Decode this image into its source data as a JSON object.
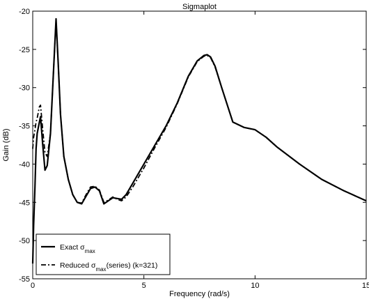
{
  "chart_data": {
    "type": "line",
    "title": "Sigmaplot",
    "xlabel": "Frequency (rad/s)",
    "ylabel": "Gain (dB)",
    "xlim": [
      0,
      15
    ],
    "ylim": [
      -55,
      -20
    ],
    "xticks": [
      0,
      5,
      10,
      15
    ],
    "yticks": [
      -55,
      -50,
      -45,
      -40,
      -35,
      -30,
      -25,
      -20
    ],
    "grid": false,
    "legend_position": "bottom-left",
    "series": [
      {
        "name": "Exact σmax",
        "legend": {
          "base": "Exact σ",
          "sub": "max",
          "rest": ""
        },
        "style": "solid",
        "x": [
          0.0,
          0.04,
          0.1,
          0.15,
          0.2,
          0.3,
          0.35,
          0.45,
          0.55,
          0.65,
          0.8,
          0.95,
          1.05,
          1.15,
          1.25,
          1.4,
          1.6,
          1.8,
          2.0,
          2.2,
          2.4,
          2.6,
          2.8,
          3.0,
          3.2,
          3.4,
          3.6,
          3.8,
          4.0,
          4.2,
          4.5,
          5.0,
          5.5,
          6.0,
          6.5,
          7.0,
          7.4,
          7.7,
          7.85,
          8.0,
          8.2,
          8.5,
          9.0,
          9.5,
          10.0,
          10.5,
          11.0,
          12.0,
          13.0,
          14.0,
          15.0
        ],
        "y": [
          -53.0,
          -48.0,
          -43.0,
          -38.0,
          -36.0,
          -34.5,
          -33.8,
          -37.5,
          -40.8,
          -40.2,
          -36.0,
          -27.0,
          -21.0,
          -27.0,
          -33.5,
          -39.0,
          -42.0,
          -44.0,
          -45.0,
          -45.2,
          -44.2,
          -43.2,
          -43.0,
          -43.5,
          -45.2,
          -44.8,
          -44.4,
          -44.5,
          -44.6,
          -44.0,
          -42.5,
          -40.0,
          -37.5,
          -35.0,
          -32.0,
          -28.5,
          -26.5,
          -25.8,
          -25.7,
          -26.0,
          -27.2,
          -30.0,
          -34.5,
          -35.2,
          -35.5,
          -36.5,
          -37.8,
          -40.0,
          -42.0,
          -43.5,
          -44.8
        ]
      },
      {
        "name": "Reduced σmax(series) (k=321)",
        "legend": {
          "base": "Reduced σ",
          "sub": "max",
          "rest": "(series) (k=321)"
        },
        "style": "dashdot",
        "x": [
          0.0,
          0.04,
          0.1,
          0.15,
          0.2,
          0.3,
          0.35,
          0.45,
          0.55,
          0.65,
          0.8,
          0.95,
          1.05,
          1.15,
          1.25,
          1.4,
          1.6,
          1.8,
          2.0,
          2.2,
          2.4,
          2.6,
          2.8,
          3.0,
          3.2,
          3.4,
          3.6,
          3.8,
          4.0,
          4.2,
          4.5,
          5.0,
          5.5,
          6.0,
          6.5,
          7.0,
          7.4,
          7.7,
          7.85,
          8.0,
          8.2,
          8.5,
          9.0,
          9.5,
          10.0,
          10.5,
          11.0,
          12.0,
          13.0,
          14.0,
          15.0
        ],
        "y": [
          -38.0,
          -36.5,
          -35.5,
          -34.5,
          -34.0,
          -32.5,
          -32.3,
          -35.5,
          -38.5,
          -39.0,
          -36.0,
          -27.0,
          -21.2,
          -27.0,
          -33.5,
          -39.0,
          -42.0,
          -44.0,
          -45.0,
          -45.1,
          -44.0,
          -43.0,
          -42.9,
          -43.4,
          -45.0,
          -44.7,
          -44.3,
          -44.6,
          -44.8,
          -44.3,
          -43.0,
          -40.5,
          -37.8,
          -35.2,
          -32.1,
          -28.6,
          -26.6,
          -25.9,
          -25.8,
          -26.1,
          -27.3,
          -30.0,
          -34.5,
          -35.2,
          -35.5,
          -36.5,
          -37.8,
          -40.0,
          -42.0,
          -43.5,
          -44.8
        ]
      }
    ]
  }
}
